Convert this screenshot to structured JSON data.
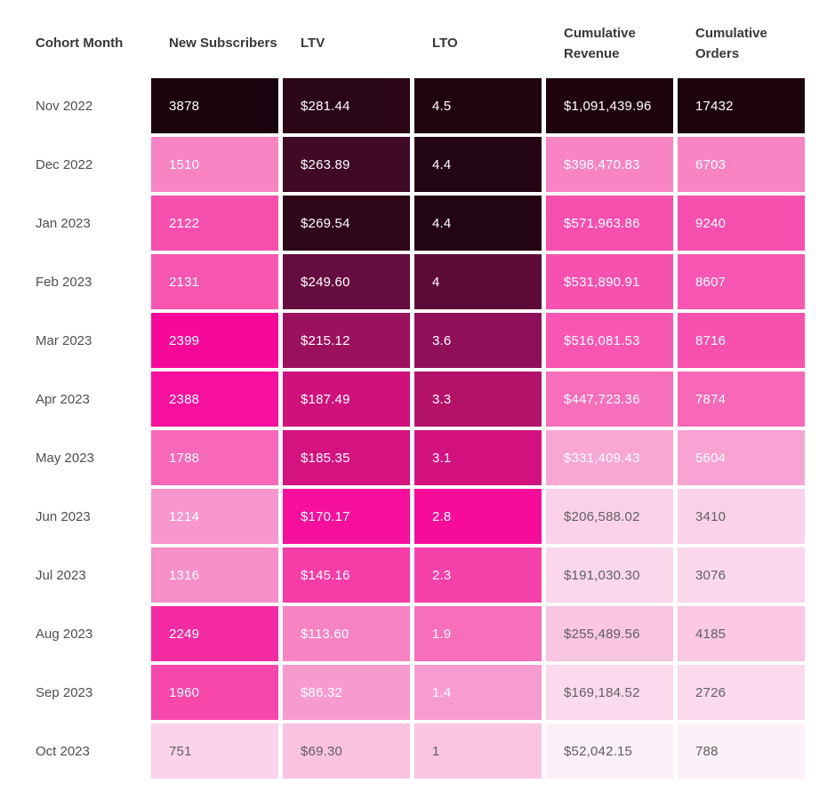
{
  "page": {
    "background": "#ffffff"
  },
  "chart_data": {
    "type": "heatmap",
    "columns": [
      "Cohort Month",
      "New Subscribers",
      "LTV",
      "LTO",
      "Cumulative Revenue",
      "Cumulative Orders"
    ],
    "palette": {
      "high": "#1e040f",
      "mid": "#f60c99",
      "low": "#fdf1f8",
      "text_on_dark": "#ffffff",
      "text_on_light": "#606060",
      "header_text": "#383838",
      "row_label_text": "#4f4f4f"
    },
    "legend_position": "none",
    "grid": false,
    "rows": [
      {
        "cohort_month": "Nov 2022",
        "cells": [
          {
            "display": "3878",
            "value": 3878,
            "bg": "#1a030d",
            "fg": "#ffffff"
          },
          {
            "display": "$281.44",
            "value": 281.44,
            "bg": "#2b0617",
            "fg": "#ffffff"
          },
          {
            "display": "4.5",
            "value": 4.5,
            "bg": "#200510",
            "fg": "#ffffff"
          },
          {
            "display": "$1,091,439.96",
            "value": 1091439.96,
            "bg": "#1e040f",
            "fg": "#ffffff"
          },
          {
            "display": "17432",
            "value": 17432,
            "bg": "#1e040f",
            "fg": "#ffffff"
          }
        ]
      },
      {
        "cohort_month": "Dec 2022",
        "cells": [
          {
            "display": "1510",
            "value": 1510,
            "bg": "#f884c4",
            "fg": "#ffffff"
          },
          {
            "display": "$263.89",
            "value": 263.89,
            "bg": "#400a27",
            "fg": "#ffffff"
          },
          {
            "display": "4.4",
            "value": 4.4,
            "bg": "#240513",
            "fg": "#ffffff"
          },
          {
            "display": "$398,470.83",
            "value": 398470.83,
            "bg": "#f884c3",
            "fg": "#ffffff"
          },
          {
            "display": "6703",
            "value": 6703,
            "bg": "#f884c3",
            "fg": "#ffffff"
          }
        ]
      },
      {
        "cohort_month": "Jan 2023",
        "cells": [
          {
            "display": "2122",
            "value": 2122,
            "bg": "#f74fae",
            "fg": "#ffffff"
          },
          {
            "display": "$269.54",
            "value": 269.54,
            "bg": "#2e0719",
            "fg": "#ffffff"
          },
          {
            "display": "4.4",
            "value": 4.4,
            "bg": "#240513",
            "fg": "#ffffff"
          },
          {
            "display": "$571,963.86",
            "value": 571963.86,
            "bg": "#f74fae",
            "fg": "#ffffff"
          },
          {
            "display": "9240",
            "value": 9240,
            "bg": "#f74fae",
            "fg": "#ffffff"
          }
        ]
      },
      {
        "cohort_month": "Feb 2023",
        "cells": [
          {
            "display": "2131",
            "value": 2131,
            "bg": "#f756b1",
            "fg": "#ffffff"
          },
          {
            "display": "$249.60",
            "value": 249.6,
            "bg": "#650d40",
            "fg": "#ffffff"
          },
          {
            "display": "4",
            "value": 4,
            "bg": "#5d0c3a",
            "fg": "#ffffff"
          },
          {
            "display": "$531,890.91",
            "value": 531890.91,
            "bg": "#f751af",
            "fg": "#ffffff"
          },
          {
            "display": "8607",
            "value": 8607,
            "bg": "#f757b2",
            "fg": "#ffffff"
          }
        ]
      },
      {
        "cohort_month": "Mar 2023",
        "cells": [
          {
            "display": "2399",
            "value": 2399,
            "bg": "#f60999",
            "fg": "#ffffff"
          },
          {
            "display": "$215.12",
            "value": 215.12,
            "bg": "#9c115e",
            "fg": "#ffffff"
          },
          {
            "display": "3.6",
            "value": 3.6,
            "bg": "#8f1059",
            "fg": "#ffffff"
          },
          {
            "display": "$516,081.53",
            "value": 516081.53,
            "bg": "#f757b2",
            "fg": "#ffffff"
          },
          {
            "display": "8716",
            "value": 8716,
            "bg": "#f750ae",
            "fg": "#ffffff"
          }
        ]
      },
      {
        "cohort_month": "Apr 2023",
        "cells": [
          {
            "display": "2388",
            "value": 2388,
            "bg": "#f70f9d",
            "fg": "#ffffff"
          },
          {
            "display": "$187.49",
            "value": 187.49,
            "bg": "#cf117b",
            "fg": "#ffffff"
          },
          {
            "display": "3.3",
            "value": 3.3,
            "bg": "#b41169",
            "fg": "#ffffff"
          },
          {
            "display": "$447,723.36",
            "value": 447723.36,
            "bg": "#f76eba",
            "fg": "#ffffff"
          },
          {
            "display": "7874",
            "value": 7874,
            "bg": "#f768b7",
            "fg": "#ffffff"
          }
        ]
      },
      {
        "cohort_month": "May 2023",
        "cells": [
          {
            "display": "1788",
            "value": 1788,
            "bg": "#f768b9",
            "fg": "#ffffff"
          },
          {
            "display": "$185.35",
            "value": 185.35,
            "bg": "#d41280",
            "fg": "#ffffff"
          },
          {
            "display": "3.1",
            "value": 3.1,
            "bg": "#d31280",
            "fg": "#ffffff"
          },
          {
            "display": "$331,409.43",
            "value": 331409.43,
            "bg": "#f8a7d5",
            "fg": "#ffffff"
          },
          {
            "display": "5604",
            "value": 5604,
            "bg": "#f8a3d3",
            "fg": "#ffffff"
          }
        ]
      },
      {
        "cohort_month": "Jun 2023",
        "cells": [
          {
            "display": "1214",
            "value": 1214,
            "bg": "#f797cd",
            "fg": "#ffffff"
          },
          {
            "display": "$170.17",
            "value": 170.17,
            "bg": "#f50f9b",
            "fg": "#ffffff"
          },
          {
            "display": "2.8",
            "value": 2.8,
            "bg": "#f60c99",
            "fg": "#ffffff"
          },
          {
            "display": "$206,588.02",
            "value": 206588.02,
            "bg": "#fbd2ea",
            "fg": "#606060"
          },
          {
            "display": "3410",
            "value": 3410,
            "bg": "#fbd2ea",
            "fg": "#606060"
          }
        ]
      },
      {
        "cohort_month": "Jul 2023",
        "cells": [
          {
            "display": "1316",
            "value": 1316,
            "bg": "#f78fc9",
            "fg": "#ffffff"
          },
          {
            "display": "$145.16",
            "value": 145.16,
            "bg": "#f63ca7",
            "fg": "#ffffff"
          },
          {
            "display": "2.3",
            "value": 2.3,
            "bg": "#f741aa",
            "fg": "#ffffff"
          },
          {
            "display": "$191,030.30",
            "value": 191030.3,
            "bg": "#fbd7ec",
            "fg": "#606060"
          },
          {
            "display": "3076",
            "value": 3076,
            "bg": "#fbd7ec",
            "fg": "#606060"
          }
        ]
      },
      {
        "cohort_month": "Aug 2023",
        "cells": [
          {
            "display": "2249",
            "value": 2249,
            "bg": "#f62aa2",
            "fg": "#ffffff"
          },
          {
            "display": "$113.60",
            "value": 113.6,
            "bg": "#f783c2",
            "fg": "#ffffff"
          },
          {
            "display": "1.9",
            "value": 1.9,
            "bg": "#f76ebb",
            "fg": "#ffffff"
          },
          {
            "display": "$255,489.56",
            "value": 255489.56,
            "bg": "#fac4e3",
            "fg": "#606060"
          },
          {
            "display": "4185",
            "value": 4185,
            "bg": "#fac7e4",
            "fg": "#606060"
          }
        ]
      },
      {
        "cohort_month": "Sep 2023",
        "cells": [
          {
            "display": "1960",
            "value": 1960,
            "bg": "#f747ab",
            "fg": "#ffffff"
          },
          {
            "display": "$86.32",
            "value": 86.32,
            "bg": "#f79bce",
            "fg": "#ffffff"
          },
          {
            "display": "1.4",
            "value": 1.4,
            "bg": "#f79cd0",
            "fg": "#ffffff"
          },
          {
            "display": "$169,184.52",
            "value": 169184.52,
            "bg": "#fbdaee",
            "fg": "#606060"
          },
          {
            "display": "2726",
            "value": 2726,
            "bg": "#fbdaee",
            "fg": "#606060"
          }
        ]
      },
      {
        "cohort_month": "Oct 2023",
        "cells": [
          {
            "display": "751",
            "value": 751,
            "bg": "#fbd4eb",
            "fg": "#606060"
          },
          {
            "display": "$69.30",
            "value": 69.3,
            "bg": "#fac2e1",
            "fg": "#606060"
          },
          {
            "display": "1",
            "value": 1,
            "bg": "#fac5e3",
            "fg": "#606060"
          },
          {
            "display": "$52,042.15",
            "value": 52042.15,
            "bg": "#fdeff7",
            "fg": "#606060"
          },
          {
            "display": "788",
            "value": 788,
            "bg": "#fdf0f8",
            "fg": "#606060"
          }
        ]
      }
    ]
  }
}
